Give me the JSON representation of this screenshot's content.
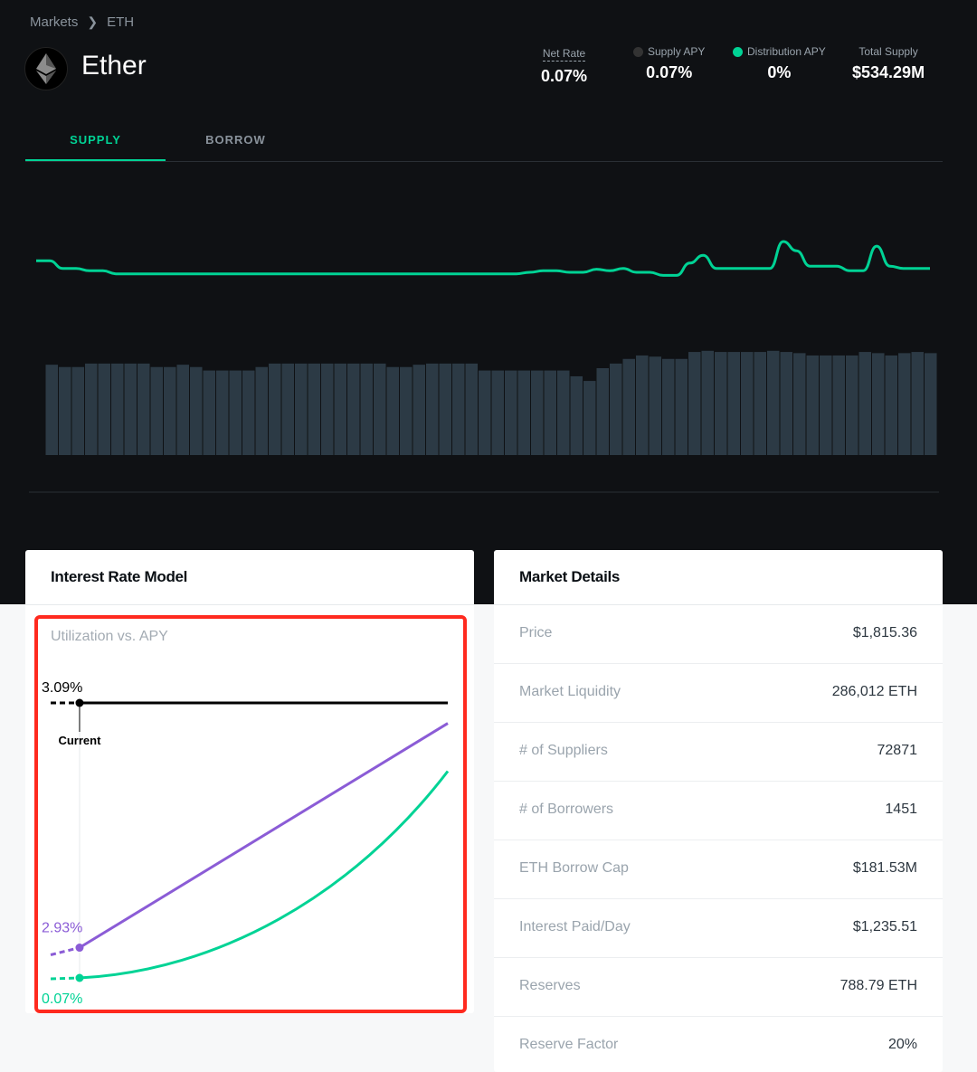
{
  "breadcrumb": {
    "parent": "Markets",
    "current": "ETH"
  },
  "asset": {
    "name": "Ether",
    "icon": "ethereum-icon"
  },
  "stats": {
    "net_rate": {
      "label": "Net Rate",
      "value": "0.07%"
    },
    "supply_apy": {
      "label": "Supply APY",
      "value": "0.07%",
      "icon": "ethereum-icon"
    },
    "distribution_apy": {
      "label": "Distribution APY",
      "value": "0%",
      "icon": "comp-token-icon"
    },
    "total_supply": {
      "label": "Total Supply",
      "value": "$534.29M"
    }
  },
  "tabs": {
    "supply": "SUPPLY",
    "borrow": "BORROW",
    "active": "SUPPLY"
  },
  "history": {
    "line_color": "#00d395",
    "bar_color": "#2c3a45",
    "rate_series": [
      0.55,
      0.55,
      0.45,
      0.45,
      0.42,
      0.42,
      0.38,
      0.38,
      0.38,
      0.38,
      0.38,
      0.38,
      0.38,
      0.38,
      0.38,
      0.38,
      0.38,
      0.38,
      0.38,
      0.38,
      0.38,
      0.38,
      0.38,
      0.38,
      0.38,
      0.38,
      0.38,
      0.38,
      0.38,
      0.38,
      0.38,
      0.38,
      0.38,
      0.38,
      0.38,
      0.38,
      0.38,
      0.4,
      0.42,
      0.42,
      0.4,
      0.4,
      0.44,
      0.42,
      0.45,
      0.4,
      0.4,
      0.36,
      0.36,
      0.52,
      0.62,
      0.45,
      0.45,
      0.45,
      0.45,
      0.45,
      0.8,
      0.68,
      0.48,
      0.48,
      0.48,
      0.42,
      0.42,
      0.74,
      0.48,
      0.45,
      0.45,
      0.45
    ],
    "supply_bars": [
      78,
      76,
      76,
      79,
      79,
      79,
      79,
      79,
      76,
      76,
      78,
      76,
      73,
      73,
      73,
      73,
      76,
      79,
      79,
      79,
      79,
      79,
      79,
      79,
      79,
      79,
      76,
      76,
      78,
      79,
      79,
      79,
      79,
      73,
      73,
      73,
      73,
      73,
      73,
      73,
      68,
      64,
      75,
      79,
      83,
      86,
      85,
      83,
      83,
      89,
      90,
      89,
      89,
      89,
      89,
      90,
      89,
      88,
      86,
      86,
      86,
      86,
      89,
      88,
      86,
      88,
      89,
      88
    ]
  },
  "interest_rate_model": {
    "title": "Interest Rate Model",
    "subtitle": "Utilization vs. APY",
    "borrow_color": "#8b5cd6",
    "supply_color": "#00d395",
    "current_utilization": 0.04,
    "utilization_label": "3.09%",
    "current_label": "Current",
    "borrow_apy_label": "2.93%",
    "supply_apy_label": "0.07%",
    "borrow_curve": [
      [
        0.04,
        2.93
      ],
      [
        1.0,
        24.0
      ]
    ],
    "supply_curve_end": 19.5
  },
  "market_details": {
    "title": "Market Details",
    "rows": [
      {
        "key": "Price",
        "value": "$1,815.36"
      },
      {
        "key": "Market Liquidity",
        "value": "286,012 ETH"
      },
      {
        "key": "# of Suppliers",
        "value": "72871"
      },
      {
        "key": "# of Borrowers",
        "value": "1451"
      },
      {
        "key": "ETH Borrow Cap",
        "value": "$181.53M"
      },
      {
        "key": "Interest Paid/Day",
        "value": "$1,235.51"
      },
      {
        "key": "Reserves",
        "value": "788.79 ETH"
      },
      {
        "key": "Reserve Factor",
        "value": "20%"
      }
    ]
  }
}
